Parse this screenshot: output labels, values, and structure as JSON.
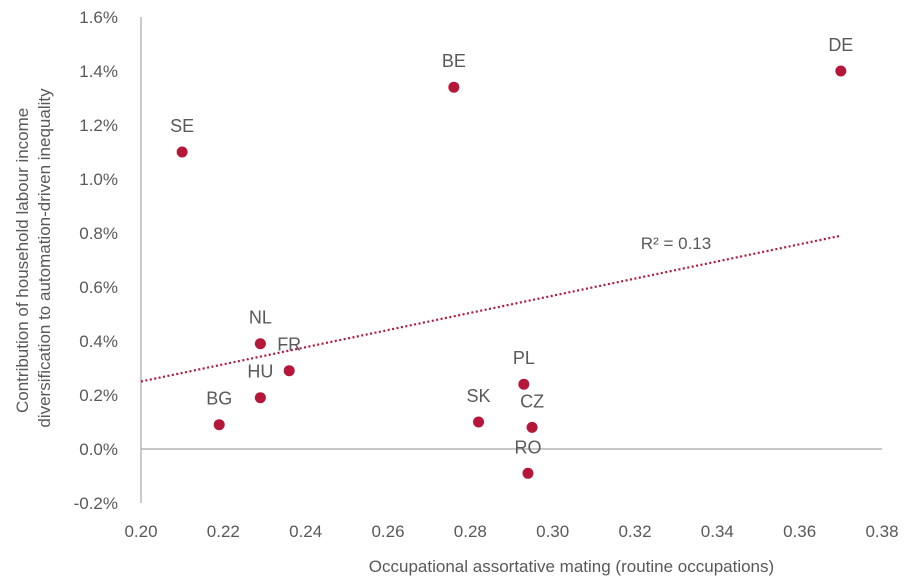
{
  "chart_data": {
    "type": "scatter",
    "xlabel": "Occupational assortative mating (routine occupations)",
    "ylabel_lines": [
      "Contribution of household labour income",
      "diversification to automation-driven inequality"
    ],
    "xlim": [
      0.2,
      0.38
    ],
    "ylim": [
      -0.002,
      0.016
    ],
    "x_ticks": [
      0.2,
      0.22,
      0.24,
      0.26,
      0.28,
      0.3,
      0.32,
      0.34,
      0.36,
      0.38
    ],
    "x_tick_labels": [
      "0.20",
      "0.22",
      "0.24",
      "0.26",
      "0.28",
      "0.30",
      "0.32",
      "0.34",
      "0.36",
      "0.38"
    ],
    "y_ticks": [
      -0.002,
      0.0,
      0.002,
      0.004,
      0.006,
      0.008,
      0.01,
      0.012,
      0.014,
      0.016
    ],
    "y_tick_labels": [
      "-0.2%",
      "0.0%",
      "0.2%",
      "0.4%",
      "0.6%",
      "0.8%",
      "1.0%",
      "1.2%",
      "1.4%",
      "1.6%"
    ],
    "points": [
      {
        "label": "SE",
        "x": 0.21,
        "y": 0.011
      },
      {
        "label": "BE",
        "x": 0.276,
        "y": 0.0134
      },
      {
        "label": "DE",
        "x": 0.37,
        "y": 0.014
      },
      {
        "label": "NL",
        "x": 0.229,
        "y": 0.0039
      },
      {
        "label": "FR",
        "x": 0.236,
        "y": 0.0029
      },
      {
        "label": "HU",
        "x": 0.229,
        "y": 0.0019
      },
      {
        "label": "BG",
        "x": 0.219,
        "y": 0.0009
      },
      {
        "label": "SK",
        "x": 0.282,
        "y": 0.001
      },
      {
        "label": "PL",
        "x": 0.293,
        "y": 0.0024
      },
      {
        "label": "CZ",
        "x": 0.295,
        "y": 0.0008
      },
      {
        "label": "RO",
        "x": 0.294,
        "y": -0.0009
      }
    ],
    "trendline": {
      "x": [
        0.2,
        0.37
      ],
      "y": [
        0.0025,
        0.0079
      ],
      "style": "dotted"
    },
    "annotation": "R² = 0.13",
    "colors": {
      "point": "#b5173b",
      "trend": "#b5173b",
      "axis": "#a6a6a6",
      "text": "#595959"
    },
    "grid": false,
    "legend": "none"
  }
}
